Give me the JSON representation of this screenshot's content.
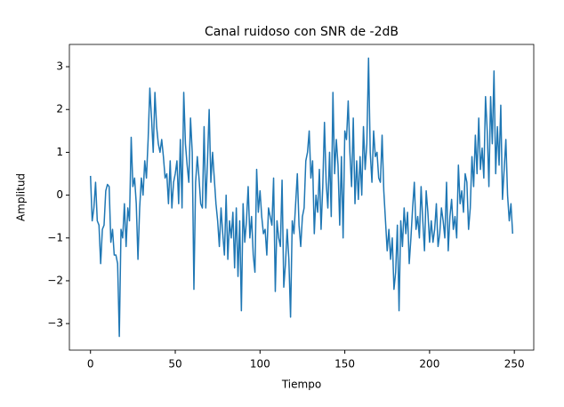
{
  "chart_data": {
    "type": "line",
    "title": "Canal ruidoso con SNR de -2dB",
    "xlabel": "Tiempo",
    "ylabel": "Amplitud",
    "x": [
      0,
      1,
      2,
      3,
      4,
      5,
      6,
      7,
      8,
      9,
      10,
      11,
      12,
      13,
      14,
      15,
      16,
      17,
      18,
      19,
      20,
      21,
      22,
      23,
      24,
      25,
      26,
      27,
      28,
      29,
      30,
      31,
      32,
      33,
      34,
      35,
      36,
      37,
      38,
      39,
      40,
      41,
      42,
      43,
      44,
      45,
      46,
      47,
      48,
      49,
      50,
      51,
      52,
      53,
      54,
      55,
      56,
      57,
      58,
      59,
      60,
      61,
      62,
      63,
      64,
      65,
      66,
      67,
      68,
      69,
      70,
      71,
      72,
      73,
      74,
      75,
      76,
      77,
      78,
      79,
      80,
      81,
      82,
      83,
      84,
      85,
      86,
      87,
      88,
      89,
      90,
      91,
      92,
      93,
      94,
      95,
      96,
      97,
      98,
      99,
      100,
      101,
      102,
      103,
      104,
      105,
      106,
      107,
      108,
      109,
      110,
      111,
      112,
      113,
      114,
      115,
      116,
      117,
      118,
      119,
      120,
      121,
      122,
      123,
      124,
      125,
      126,
      127,
      128,
      129,
      130,
      131,
      132,
      133,
      134,
      135,
      136,
      137,
      138,
      139,
      140,
      141,
      142,
      143,
      144,
      145,
      146,
      147,
      148,
      149,
      150,
      151,
      152,
      153,
      154,
      155,
      156,
      157,
      158,
      159,
      160,
      161,
      162,
      163,
      164,
      165,
      166,
      167,
      168,
      169,
      170,
      171,
      172,
      173,
      174,
      175,
      176,
      177,
      178,
      179,
      180,
      181,
      182,
      183,
      184,
      185,
      186,
      187,
      188,
      189,
      190,
      191,
      192,
      193,
      194,
      195,
      196,
      197,
      198,
      199,
      200,
      201,
      202,
      203,
      204,
      205,
      206,
      207,
      208,
      209,
      210,
      211,
      212,
      213,
      214,
      215,
      216,
      217,
      218,
      219,
      220,
      221,
      222,
      223,
      224,
      225,
      226,
      227,
      228,
      229,
      230,
      231,
      232,
      233,
      234,
      235,
      236,
      237,
      238,
      239,
      240,
      241,
      242,
      243,
      244,
      245,
      246,
      247,
      248,
      249
    ],
    "series": [
      {
        "color": "#1f77b4",
        "values": [
          0.45,
          -0.6,
          -0.3,
          0.3,
          -0.6,
          -0.7,
          -1.6,
          -0.8,
          -0.7,
          0.1,
          0.25,
          0.2,
          -1.1,
          -0.8,
          -1.4,
          -1.4,
          -1.6,
          -3.3,
          -0.8,
          -1.0,
          -0.2,
          -1.2,
          -0.3,
          -0.6,
          1.35,
          0.2,
          0.4,
          -0.2,
          -1.5,
          -0.3,
          0.4,
          0.0,
          0.8,
          0.4,
          1.3,
          2.5,
          1.8,
          1.0,
          2.4,
          1.6,
          1.2,
          1.0,
          1.3,
          0.9,
          0.4,
          0.5,
          -0.2,
          0.8,
          -0.3,
          0.3,
          0.5,
          0.8,
          -0.2,
          1.3,
          -0.3,
          2.4,
          1.2,
          0.7,
          0.3,
          1.8,
          1.0,
          -2.2,
          0.3,
          0.9,
          0.4,
          -0.2,
          -0.3,
          1.6,
          -0.3,
          0.8,
          2.0,
          0.3,
          1.0,
          0.4,
          -0.2,
          -0.6,
          -1.2,
          -0.3,
          -0.9,
          -1.4,
          0.0,
          -1.5,
          -0.6,
          -1.0,
          -0.4,
          -1.7,
          -0.3,
          -1.9,
          -0.6,
          -2.7,
          -0.2,
          -1.1,
          -0.6,
          0.2,
          -1.0,
          -0.5,
          -1.4,
          -1.8,
          0.6,
          -0.4,
          0.1,
          -0.5,
          -0.9,
          -0.8,
          -1.4,
          -0.3,
          -0.5,
          -0.7,
          0.4,
          -2.25,
          -0.6,
          -1.0,
          -1.2,
          0.35,
          -2.15,
          -1.6,
          -0.8,
          -1.5,
          -2.85,
          -0.6,
          -0.9,
          -0.2,
          0.5,
          -0.7,
          -1.2,
          -0.5,
          -0.3,
          0.8,
          1.0,
          1.5,
          0.4,
          0.8,
          -0.9,
          0.0,
          -0.4,
          0.6,
          -0.8,
          0.2,
          1.7,
          0.3,
          -0.3,
          1.0,
          -0.5,
          2.4,
          0.5,
          1.3,
          0.7,
          -0.7,
          0.9,
          -1.0,
          1.5,
          1.3,
          2.2,
          1.0,
          0.2,
          1.8,
          -0.2,
          0.8,
          -0.1,
          0.9,
          0.0,
          1.6,
          0.6,
          1.2,
          3.2,
          1.0,
          0.3,
          1.5,
          0.9,
          1.0,
          0.4,
          0.3,
          1.4,
          0.1,
          -0.6,
          -1.3,
          -0.8,
          -1.5,
          -1.0,
          -2.2,
          -1.8,
          -0.7,
          -2.7,
          -0.6,
          -1.2,
          -0.3,
          -0.9,
          -0.4,
          -1.6,
          -1.0,
          -0.3,
          0.3,
          -0.8,
          -0.5,
          -1.0,
          0.2,
          -0.6,
          -1.3,
          0.1,
          -0.4,
          -1.1,
          -0.6,
          -1.1,
          -0.8,
          -0.2,
          -1.2,
          -0.9,
          -0.3,
          -0.6,
          -1.0,
          0.3,
          -1.3,
          -0.5,
          -0.1,
          -0.8,
          -0.5,
          -1.0,
          0.7,
          -0.2,
          0.1,
          -0.4,
          0.5,
          0.3,
          -0.8,
          -0.3,
          0.9,
          0.2,
          1.4,
          0.5,
          1.8,
          0.6,
          1.1,
          0.4,
          2.3,
          1.5,
          0.2,
          2.3,
          1.2,
          2.9,
          0.5,
          1.6,
          0.7,
          2.1,
          -0.1,
          0.6,
          1.3,
          0.0,
          -0.6,
          -0.2,
          -0.9
        ]
      }
    ],
    "xlim": [
      -12.45,
      261.45
    ],
    "xticks": [
      0,
      50,
      100,
      150,
      200,
      250
    ],
    "ylim": [
      -3.62,
      3.52
    ],
    "yticks": [
      {
        "value": -3,
        "label": "−3"
      },
      {
        "value": -2,
        "label": "−2"
      },
      {
        "value": -1,
        "label": "−1"
      },
      0,
      1,
      2,
      3
    ],
    "grid": false
  }
}
